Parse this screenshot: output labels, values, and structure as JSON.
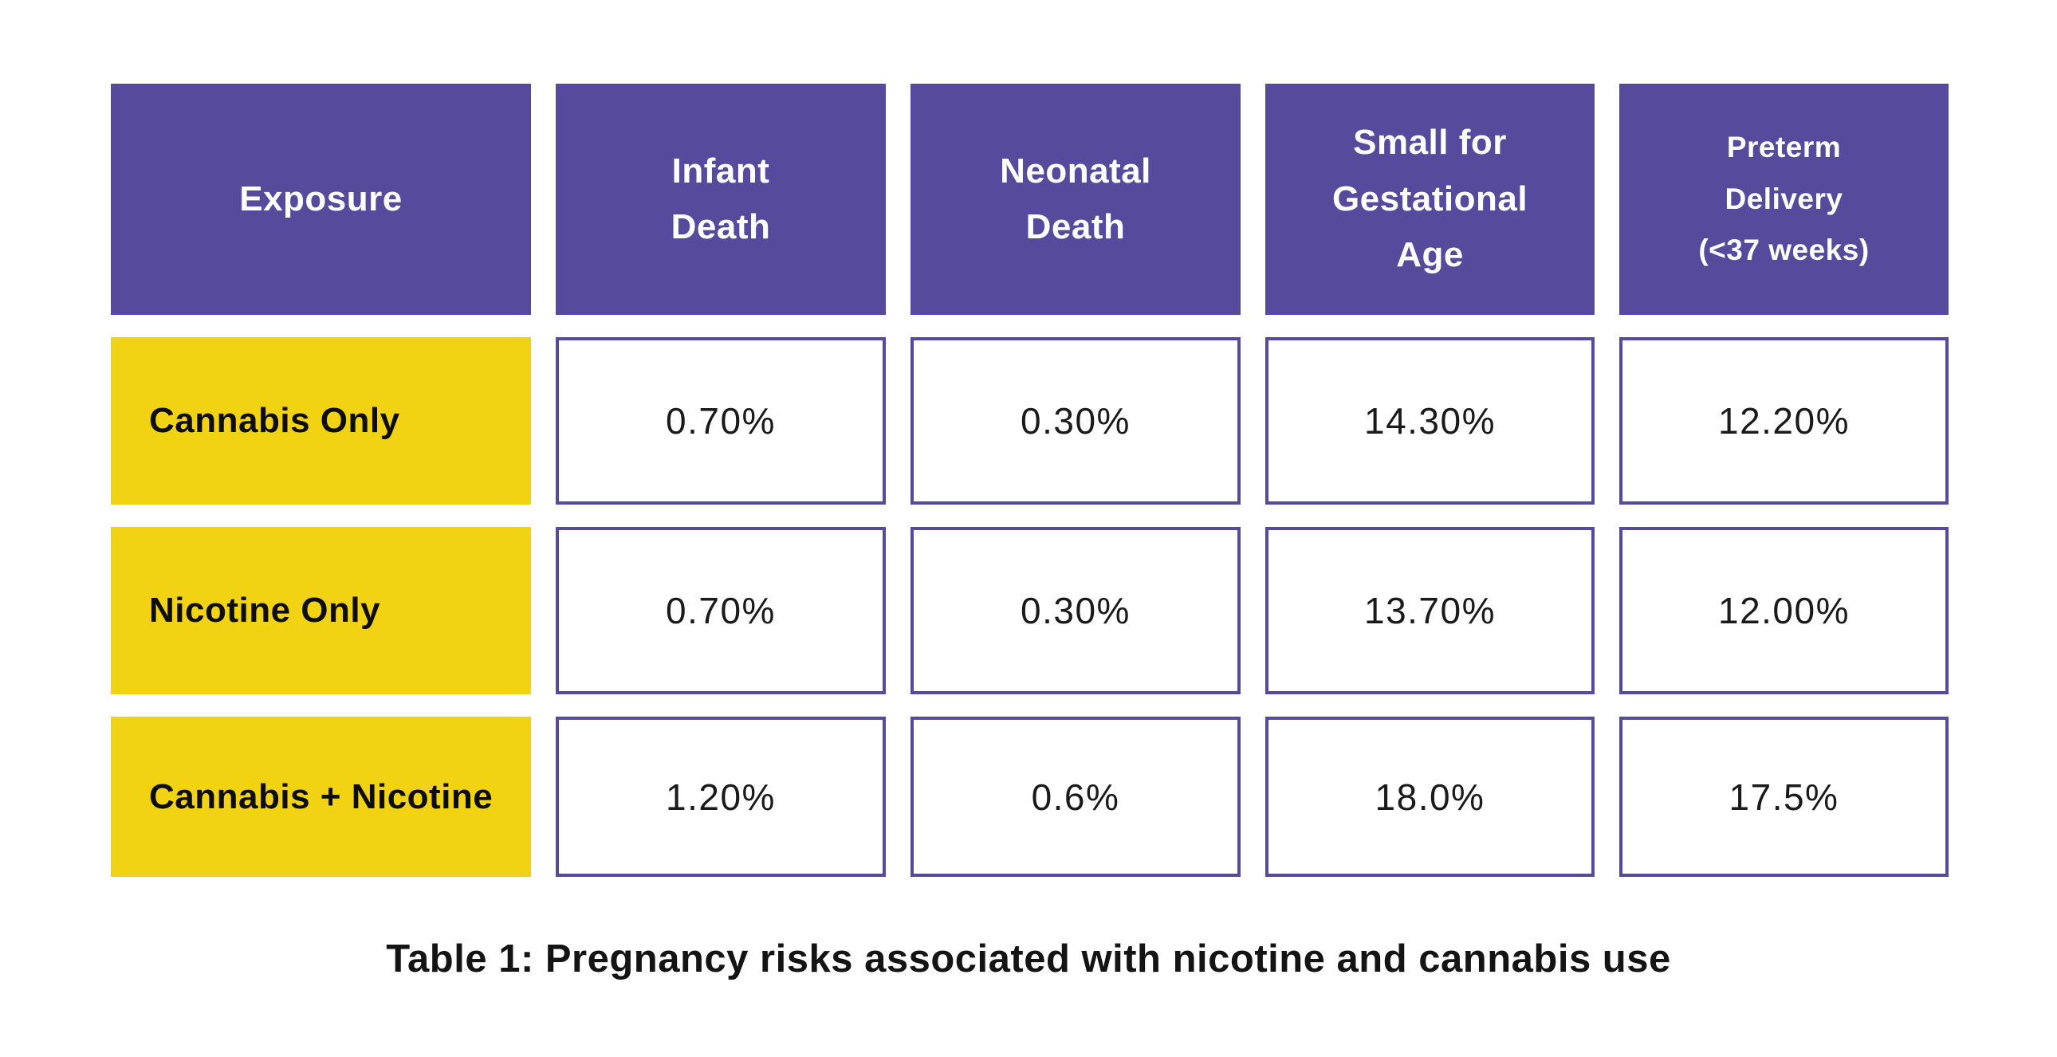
{
  "colors": {
    "header_bg": "#564a9c",
    "row_label_bg": "#f2d313",
    "cell_border": "#564a9c",
    "text_dark": "#1a1a1a"
  },
  "header": {
    "cells": [
      "Exposure",
      "Infant\nDeath",
      "Neonatal\nDeath",
      "Small for\nGestational\nAge",
      "Preterm\nDelivery\n(<37 weeks)"
    ]
  },
  "chart_data": {
    "type": "table",
    "title": "Table 1: Pregnancy risks associated with nicotine and cannabis use",
    "columns": [
      "Exposure",
      "Infant Death",
      "Neonatal Death",
      "Small for Gestational Age",
      "Preterm Delivery (<37 weeks)"
    ],
    "rows": [
      {
        "label": "Cannabis Only",
        "values": [
          "0.70%",
          "0.30%",
          "14.30%",
          "12.20%"
        ]
      },
      {
        "label": "Nicotine Only",
        "values": [
          "0.70%",
          "0.30%",
          "13.70%",
          "12.00%"
        ]
      },
      {
        "label": "Cannabis + Nicotine",
        "values": [
          "1.20%",
          "0.6%",
          "18.0%",
          "17.5%"
        ]
      }
    ]
  }
}
